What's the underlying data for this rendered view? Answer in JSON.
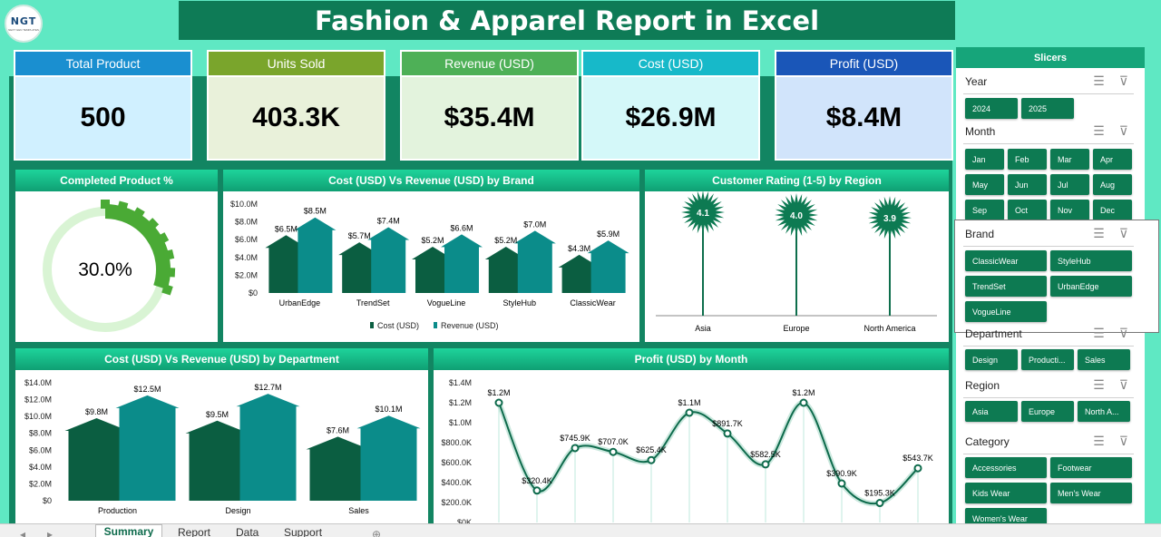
{
  "header": {
    "logo_text": "NGT",
    "logo_sub": "NEXT GEN TEMPLATES",
    "title": "Fashion & Apparel Report in Excel"
  },
  "kpis": [
    {
      "label": "Total Product",
      "value": "500",
      "head": "#1a8fd0",
      "body": "#d0f0ff"
    },
    {
      "label": "Units Sold",
      "value": "403.3K",
      "head": "#7aa52c",
      "body": "#e9f1da"
    },
    {
      "label": "Revenue (USD)",
      "value": "$35.4M",
      "head": "#4eb057",
      "body": "#e3f3dd"
    },
    {
      "label": "Cost (USD)",
      "value": "$26.9M",
      "head": "#17b9c9",
      "body": "#d4f8f9"
    },
    {
      "label": "Profit (USD)",
      "value": "$8.4M",
      "head": "#1a56b8",
      "body": "#d1e4fb"
    }
  ],
  "completed": {
    "title": "Completed Product %",
    "value_label": "30.0%",
    "value": 30
  },
  "brand_chart": {
    "title": "Cost (USD) Vs Revenue (USD) by Brand",
    "chart_data": {
      "type": "bar",
      "categories": [
        "UrbanEdge",
        "TrendSet",
        "VogueLine",
        "StyleHub",
        "ClassicWear"
      ],
      "series": [
        {
          "name": "Cost (USD)",
          "values": [
            6.5,
            5.7,
            5.2,
            5.2,
            4.3
          ],
          "labels": [
            "$6.5M",
            "$5.7M",
            "$5.2M",
            "$5.2M",
            "$4.3M"
          ]
        },
        {
          "name": "Revenue (USD)",
          "values": [
            8.5,
            7.4,
            6.6,
            7.0,
            5.9
          ],
          "labels": [
            "$8.5M",
            "$7.4M",
            "$6.6M",
            "$7.0M",
            "$5.9M"
          ]
        }
      ],
      "ylim": [
        0,
        10
      ],
      "yticks": [
        "$0",
        "$2.0M",
        "$4.0M",
        "$6.0M",
        "$8.0M",
        "$10.0M"
      ]
    }
  },
  "rating_chart": {
    "title": "Customer Rating (1-5) by Region",
    "chart_data": {
      "type": "bar",
      "categories": [
        "Asia",
        "Europe",
        "North America"
      ],
      "values": [
        4.1,
        4.0,
        3.9
      ],
      "labels": [
        "4.1",
        "4.0",
        "3.9"
      ]
    }
  },
  "dept_chart": {
    "title": "Cost (USD) Vs Revenue (USD) by Department",
    "chart_data": {
      "type": "bar",
      "categories": [
        "Production",
        "Design",
        "Sales"
      ],
      "series": [
        {
          "name": "Cost (USD)",
          "values": [
            9.8,
            9.5,
            7.6
          ],
          "labels": [
            "$9.8M",
            "$9.5M",
            "$7.6M"
          ]
        },
        {
          "name": "Revenue (USD)",
          "values": [
            12.5,
            12.7,
            10.1
          ],
          "labels": [
            "$12.5M",
            "$12.7M",
            "$10.1M"
          ]
        }
      ],
      "ylim": [
        0,
        14
      ],
      "yticks": [
        "$0",
        "$2.0M",
        "$4.0M",
        "$6.0M",
        "$8.0M",
        "$10.0M",
        "$12.0M",
        "$14.0M"
      ]
    }
  },
  "profit_chart": {
    "title": "Profit (USD) by Month",
    "chart_data": {
      "type": "line",
      "values": [
        1200,
        320.4,
        745.9,
        707.0,
        625.4,
        1100,
        891.7,
        582.5,
        1200,
        390.9,
        195.3,
        543.7
      ],
      "labels": [
        "$1.2M",
        "$320.4K",
        "$745.9K",
        "$707.0K",
        "$625.4K",
        "$1.1M",
        "$891.7K",
        "$582.5K",
        "$1.2M",
        "$390.9K",
        "$195.3K",
        "$543.7K"
      ],
      "ylim": [
        0,
        1400
      ],
      "yticks": [
        "$0K",
        "$200.0K",
        "$400.0K",
        "$600.0K",
        "$800.0K",
        "$1.0M",
        "$1.2M",
        "$1.4M"
      ]
    }
  },
  "slicers": {
    "title": "Slicers",
    "year": {
      "label": "Year",
      "items": [
        "2024",
        "2025"
      ]
    },
    "month": {
      "label": "Month",
      "items": [
        "Jan",
        "Feb",
        "Mar",
        "Apr",
        "May",
        "Jun",
        "Jul",
        "Aug",
        "Sep",
        "Oct",
        "Nov",
        "Dec"
      ]
    },
    "brand": {
      "label": "Brand",
      "items": [
        "ClassicWear",
        "StyleHub",
        "TrendSet",
        "UrbanEdge",
        "VogueLine"
      ]
    },
    "department": {
      "label": "Department",
      "items": [
        "Design",
        "Producti...",
        "Sales"
      ]
    },
    "region": {
      "label": "Region",
      "items": [
        "Asia",
        "Europe",
        "North A..."
      ]
    },
    "category": {
      "label": "Category",
      "items": [
        "Accessories",
        "Footwear",
        "Kids Wear",
        "Men's Wear",
        "Women's Wear"
      ]
    }
  },
  "tabs": [
    "Summary",
    "Report",
    "Data",
    "Support"
  ],
  "colors": {
    "dark_bar": "#0b5e41",
    "teal_bar": "#0b8c8a",
    "accent": "#0e7b56"
  }
}
